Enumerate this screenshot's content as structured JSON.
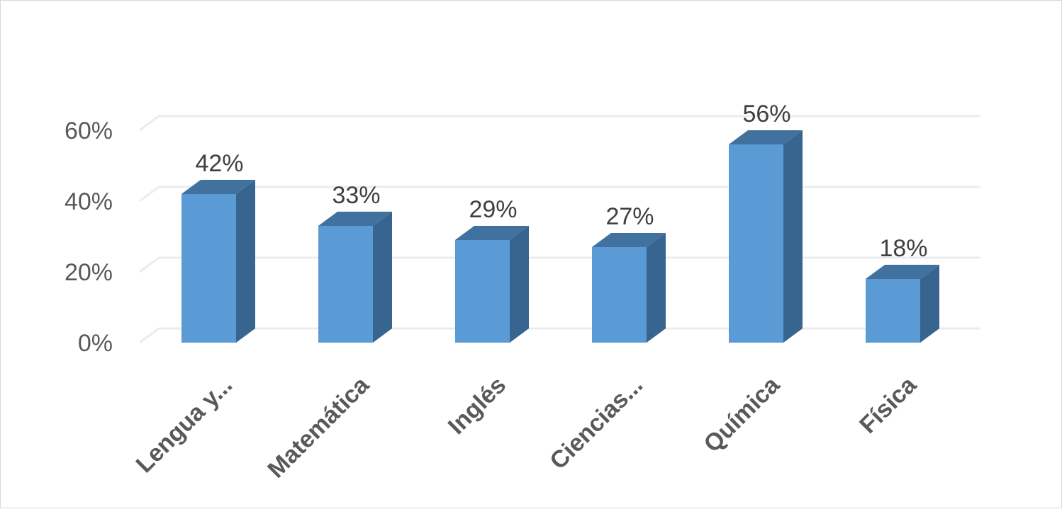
{
  "chart_data": {
    "type": "bar",
    "style": "3d-column",
    "categories": [
      "Lengua y...",
      "Matemática",
      "Inglés",
      "Ciencias...",
      "Química",
      "Física"
    ],
    "values": [
      42,
      33,
      29,
      27,
      56,
      18
    ],
    "data_labels": [
      "42%",
      "33%",
      "29%",
      "27%",
      "56%",
      "18%"
    ],
    "y_ticks": [
      "0%",
      "20%",
      "40%",
      "60%"
    ],
    "ylim": [
      0,
      60
    ],
    "grid": true,
    "legend": "none",
    "colors": {
      "bar_front": "#5b9bd5",
      "bar_top": "#41729f",
      "bar_side": "#386590",
      "gridline": "#ececec"
    }
  }
}
